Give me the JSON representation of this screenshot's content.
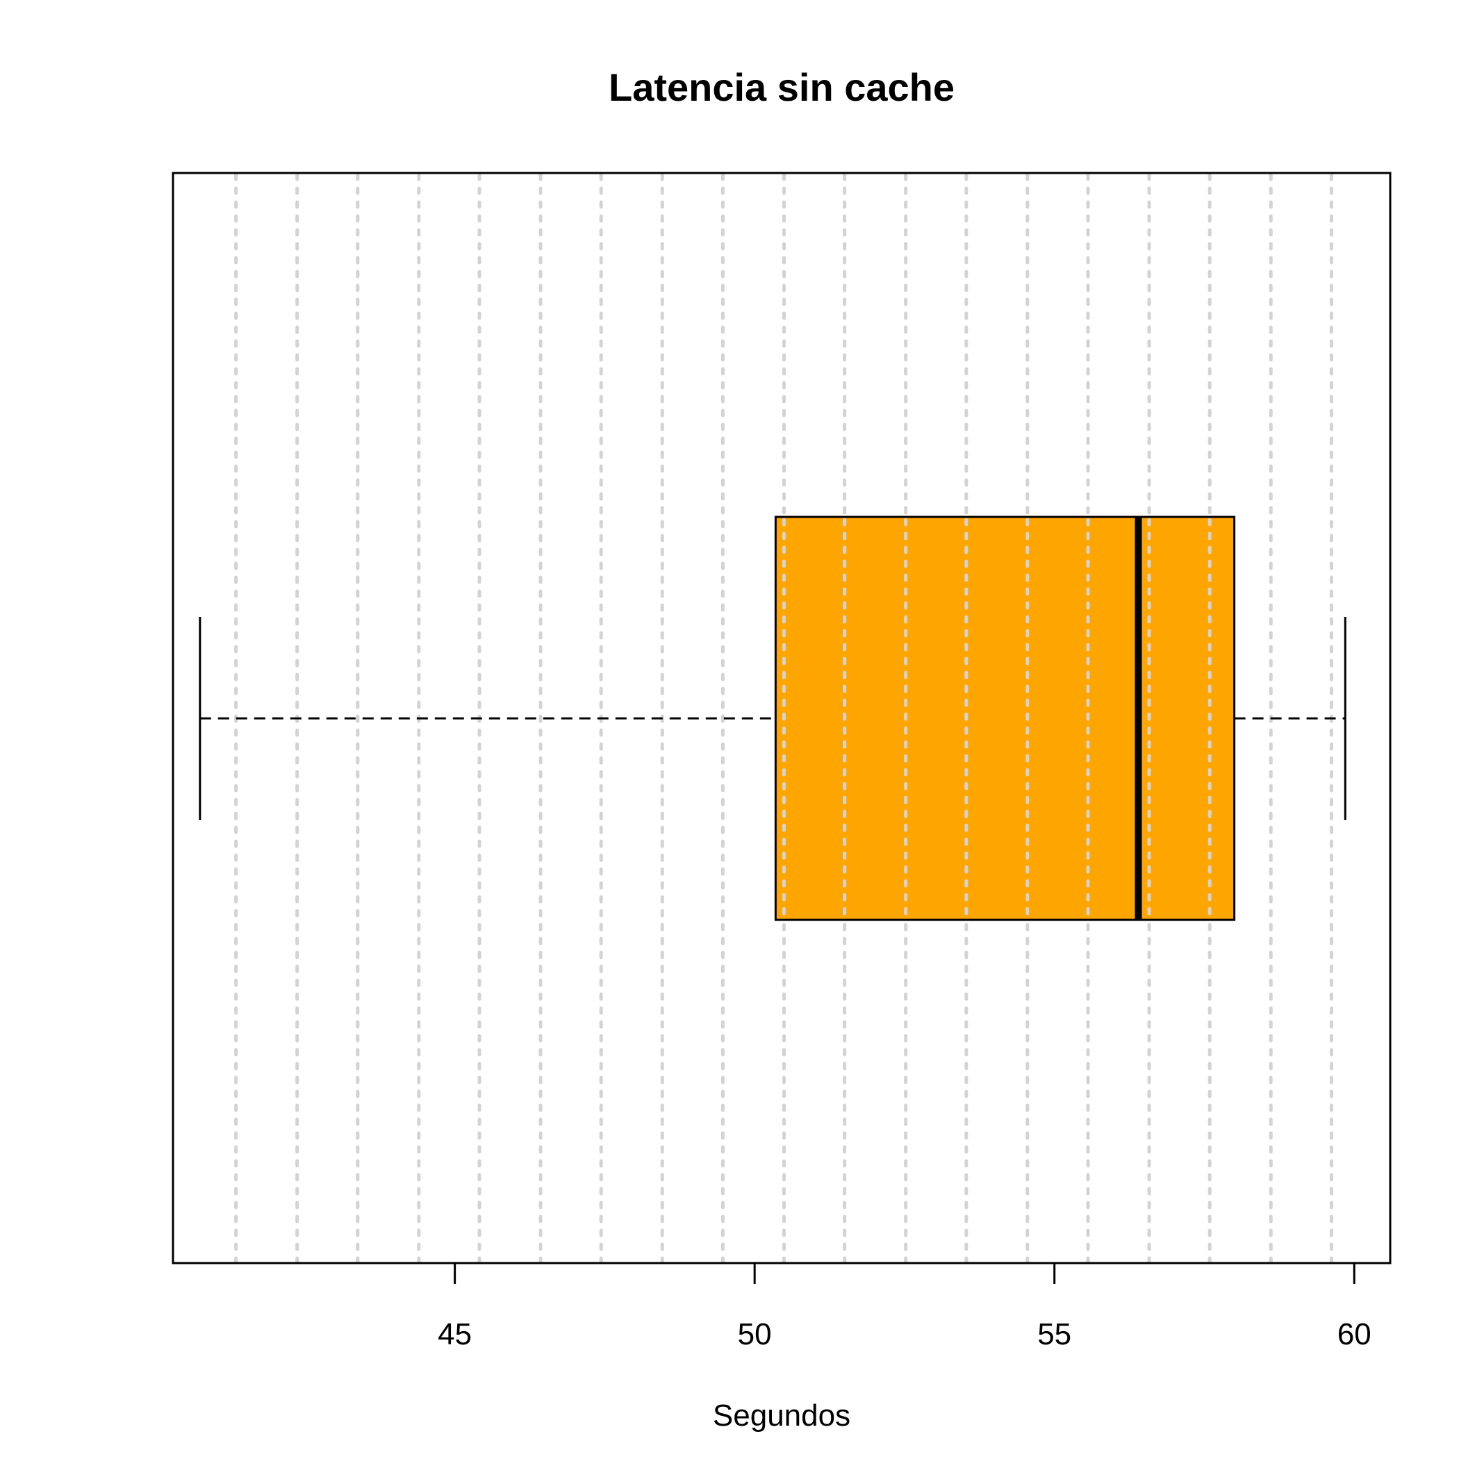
{
  "chart_data": {
    "type": "boxplot",
    "orientation": "horizontal",
    "title": "Latencia sin cache",
    "xlabel": "Segundos",
    "ylabel": "",
    "xlim": [
      40.3,
      60.6
    ],
    "ticks": [
      45,
      50,
      55,
      60
    ],
    "tick_labels": [
      "45",
      "50",
      "55",
      "60"
    ],
    "grid": {
      "on": true,
      "direction": "vertical",
      "style": "dotted",
      "color": "#d3d3d3",
      "positions": [
        41.35,
        42.37,
        43.38,
        44.4,
        45.41,
        46.43,
        47.44,
        48.46,
        49.47,
        50.49,
        51.5,
        52.52,
        53.53,
        54.55,
        55.56,
        56.58,
        57.59,
        58.61,
        59.62
      ]
    },
    "box": {
      "whisker_low": 40.75,
      "q1": 50.35,
      "median": 56.4,
      "q3": 58.0,
      "whisker_high": 59.85
    },
    "colors": {
      "box_fill": "#ffa500",
      "stroke": "#000000"
    }
  }
}
